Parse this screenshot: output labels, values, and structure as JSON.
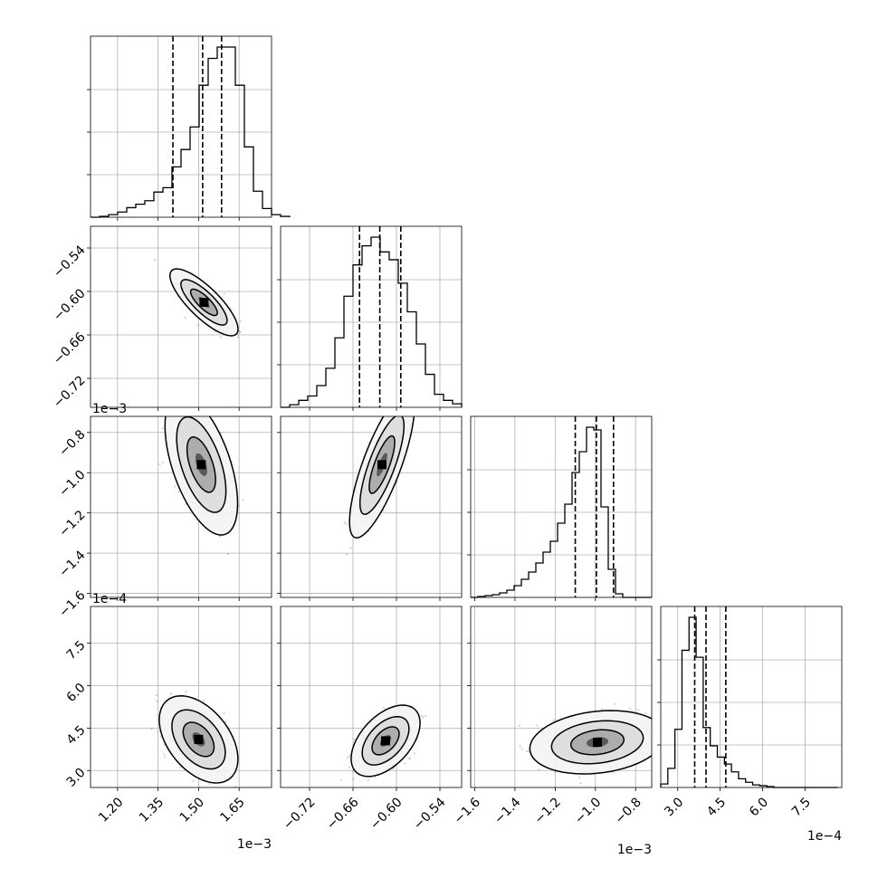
{
  "chart_data": {
    "type": "corner",
    "grid": true,
    "parameters": [
      {
        "range": [
          0.0011,
          0.00177
        ],
        "ticks": [
          0.0012,
          0.00135,
          0.0015,
          0.00165
        ],
        "tick_labels": [
          "1.20",
          "1.35",
          "1.50",
          "1.65"
        ],
        "offset_label": "1e−3",
        "quantiles": [
          0.001405,
          0.001515,
          0.001585
        ],
        "histogram": {
          "edges_start": 0.0011,
          "bin_width": 3.35e-05,
          "counts": [
            0,
            1,
            3,
            6,
            11,
            15,
            19,
            29,
            34,
            58,
            78,
            104,
            152,
            183,
            196,
            196,
            152,
            81,
            30,
            10,
            3,
            1
          ]
        }
      },
      {
        "range": [
          -0.76,
          -0.51
        ],
        "ticks": [
          -0.72,
          -0.66,
          -0.6,
          -0.54
        ],
        "tick_labels": [
          "−0.72",
          "−0.66",
          "−0.60",
          "−0.54"
        ],
        "offset_label": "",
        "quantiles": [
          -0.651,
          -0.623,
          -0.594
        ],
        "histogram": {
          "edges_start": -0.76,
          "bin_width": 0.0125,
          "counts": [
            0,
            3,
            8,
            13,
            25,
            45,
            80,
            128,
            164,
            186,
            196,
            179,
            170,
            143,
            110,
            73,
            38,
            15,
            8,
            4
          ]
        }
      },
      {
        "range": [
          -1.62,
          -0.72
        ],
        "ticks": [
          -1.6,
          -1.4,
          -1.2,
          -1.0,
          -0.8
        ],
        "tick_labels": [
          "−1.6",
          "−1.4",
          "−1.2",
          "−1.0",
          "−0.8"
        ],
        "offset_label": "1e−3",
        "quantiles": [
          -1.1,
          -0.995,
          -0.91
        ],
        "histogram": {
          "edges_start": -1.62,
          "bin_width": 0.036,
          "counts": [
            0,
            1,
            2,
            3,
            5,
            8,
            13,
            20,
            28,
            38,
            50,
            62,
            82,
            103,
            138,
            161,
            188,
            185,
            100,
            31,
            4,
            0,
            0,
            0,
            0
          ]
        }
      },
      {
        "range": [
          2.4,
          8.8
        ],
        "ticks": [
          3.0,
          4.5,
          6.0,
          7.5
        ],
        "tick_labels": [
          "3.0",
          "4.5",
          "6.0",
          "7.5"
        ],
        "offset_label": "1e−4",
        "quantiles": [
          3.6,
          4.0,
          4.7
        ],
        "histogram": {
          "edges_start": 2.4,
          "bin_width": 0.25,
          "counts": [
            4,
            22,
            67,
            158,
            196,
            150,
            69,
            48,
            35,
            27,
            18,
            10,
            6,
            3,
            2,
            1,
            0,
            0,
            0,
            0,
            0,
            0,
            0,
            0,
            0
          ]
        }
      }
    ],
    "joint_distributions": [
      {
        "x": 0,
        "y": 1,
        "center": [
          0.00152,
          -0.615
        ],
        "spread": [
          4.5e-05,
          0.0165
        ],
        "correlation": -0.8,
        "curvature": -3e-07
      },
      {
        "x": 0,
        "y": 2,
        "center": [
          0.00151,
          -0.96
        ],
        "spread": [
          4.8e-05,
          0.125
        ],
        "correlation": -0.55,
        "curvature": 4e-07
      },
      {
        "x": 1,
        "y": 2,
        "center": [
          -0.62,
          -0.96
        ],
        "spread": [
          0.016,
          0.13
        ],
        "correlation": 0.78,
        "curvature": 0.0
      },
      {
        "x": 0,
        "y": 3,
        "center": [
          0.0015,
          4.1
        ],
        "spread": [
          5.2e-05,
          0.55
        ],
        "correlation": -0.45,
        "curvature": 0.0
      },
      {
        "x": 1,
        "y": 3,
        "center": [
          -0.615,
          4.05
        ],
        "spread": [
          0.017,
          0.45
        ],
        "correlation": 0.5,
        "curvature": 0.0
      },
      {
        "x": 2,
        "y": 3,
        "center": [
          -0.99,
          4.0
        ],
        "spread": [
          0.12,
          0.4
        ],
        "correlation": 0.2,
        "curvature": 0.0
      }
    ]
  }
}
